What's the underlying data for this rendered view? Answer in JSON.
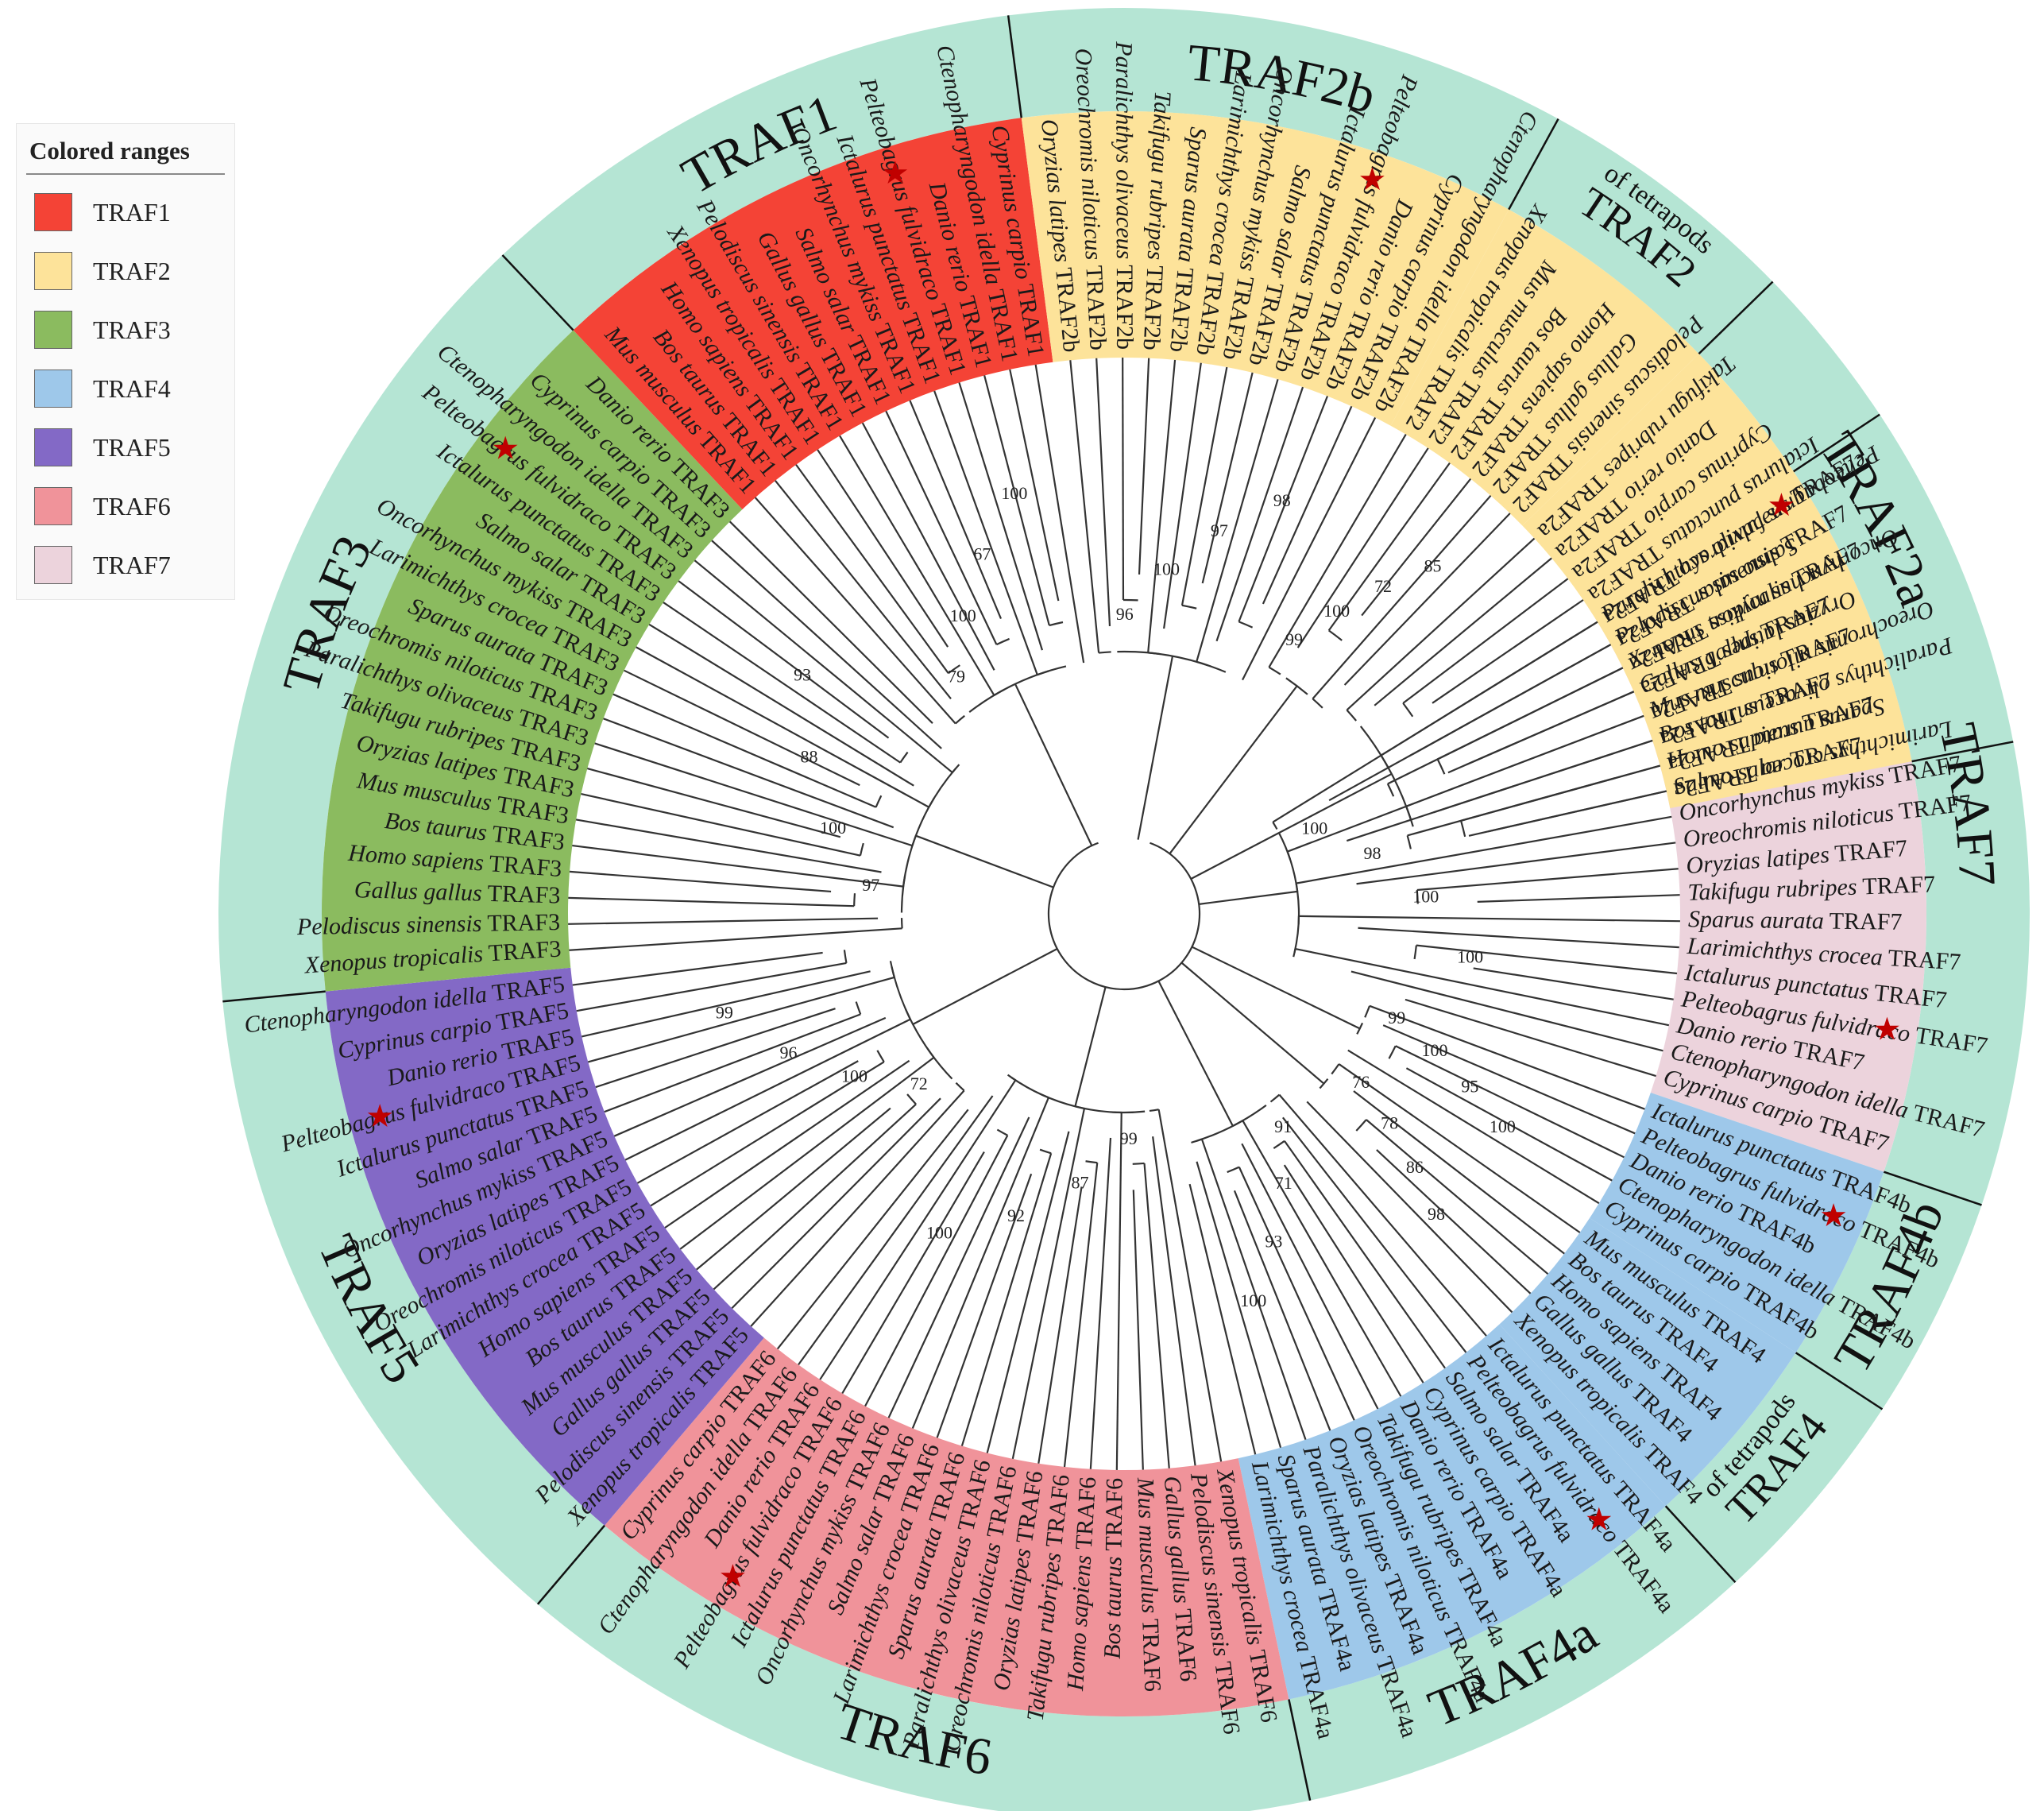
{
  "legend": {
    "title": "Colored ranges",
    "items": [
      {
        "label": "TRAF1",
        "color": "#f44336"
      },
      {
        "label": "TRAF2",
        "color": "#fde39a"
      },
      {
        "label": "TRAF3",
        "color": "#8bbb5f"
      },
      {
        "label": "TRAF4",
        "color": "#9ec8ea"
      },
      {
        "label": "TRAF5",
        "color": "#8369c6"
      },
      {
        "label": "TRAF6",
        "color": "#f0939a"
      },
      {
        "label": "TRAF7",
        "color": "#ecd3dc"
      }
    ]
  },
  "colors": {
    "ring": "#b5e5d4",
    "branch": "#333333",
    "star": "#c00000",
    "divider": "#111111"
  },
  "ring_labels": [
    {
      "id": "traf1",
      "text": "TRAF1"
    },
    {
      "id": "traf2b",
      "text": "TRAF2b"
    },
    {
      "id": "traf2t",
      "text": "TRAF2",
      "sub": "of tetrapods"
    },
    {
      "id": "traf2a",
      "text": "TRAF2a"
    },
    {
      "id": "traf7",
      "text": "TRAF7"
    },
    {
      "id": "traf4b",
      "text": "TRAF4b"
    },
    {
      "id": "traf4t",
      "text": "TRAF4",
      "sub": "of tetrapods"
    },
    {
      "id": "traf4a",
      "text": "TRAF4a"
    },
    {
      "id": "traf6",
      "text": "TRAF6"
    },
    {
      "id": "traf5",
      "text": "TRAF5"
    },
    {
      "id": "traf3",
      "text": "TRAF3"
    }
  ],
  "clades": [
    {
      "id": "traf7",
      "family": "TRAF7",
      "leaves": [
        {
          "species": "Paralichthys olivaceus",
          "gene": "TRAF7"
        },
        {
          "species": "Pelodiscus sinensis",
          "gene": "TRAF7"
        },
        {
          "species": "Xenopus tropicalis",
          "gene": "TRAF7"
        },
        {
          "species": "Gallus gallus",
          "gene": "TRAF7"
        },
        {
          "species": "Mus musculus",
          "gene": "TRAF7"
        },
        {
          "species": "Bos taurus",
          "gene": "TRAF7"
        },
        {
          "species": "Homo sapiens",
          "gene": "TRAF7"
        },
        {
          "species": "Salmo salar",
          "gene": "TRAF7"
        },
        {
          "species": "Oncorhynchus mykiss",
          "gene": "TRAF7"
        },
        {
          "species": "Oreochromis niloticus",
          "gene": "TRAF7"
        },
        {
          "species": "Oryzias latipes",
          "gene": "TRAF7"
        },
        {
          "species": "Takifugu rubripes",
          "gene": "TRAF7"
        },
        {
          "species": "Sparus aurata",
          "gene": "TRAF7"
        },
        {
          "species": "Larimichthys crocea",
          "gene": "TRAF7"
        },
        {
          "species": "Ictalurus punctatus",
          "gene": "TRAF7"
        },
        {
          "species": "Pelteobagrus fulvidraco",
          "gene": "TRAF7",
          "star": true
        },
        {
          "species": "Danio rerio",
          "gene": "TRAF7"
        },
        {
          "species": "Ctenopharyngodon idella",
          "gene": "TRAF7"
        },
        {
          "species": "Cyprinus carpio",
          "gene": "TRAF7"
        }
      ]
    },
    {
      "id": "traf4b",
      "family": "TRAF4",
      "leaves": [
        {
          "species": "Ictalurus punctatus",
          "gene": "TRAF4b"
        },
        {
          "species": "Pelteobagrus fulvidraco",
          "gene": "TRAF4b",
          "star": true
        },
        {
          "species": "Danio rerio",
          "gene": "TRAF4b"
        },
        {
          "species": "Ctenopharyngodon idella",
          "gene": "TRAF4b"
        },
        {
          "species": "Cyprinus carpio",
          "gene": "TRAF4b"
        }
      ]
    },
    {
      "id": "traf4t",
      "family": "TRAF4",
      "leaves": [
        {
          "species": "Mus musculus",
          "gene": "TRAF4"
        },
        {
          "species": "Bos taurus",
          "gene": "TRAF4"
        },
        {
          "species": "Homo sapiens",
          "gene": "TRAF4"
        },
        {
          "species": "Gallus gallus",
          "gene": "TRAF4"
        },
        {
          "species": "Xenopus tropicalis",
          "gene": "TRAF4"
        }
      ]
    },
    {
      "id": "traf4a",
      "family": "TRAF4",
      "leaves": [
        {
          "species": "Ictalurus punctatus",
          "gene": "TRAF4a"
        },
        {
          "species": "Pelteobagrus fulvidraco",
          "gene": "TRAF4a",
          "star": true
        },
        {
          "species": "Salmo salar",
          "gene": "TRAF4a"
        },
        {
          "species": "Cyprinus carpio",
          "gene": "TRAF4a"
        },
        {
          "species": "Danio rerio",
          "gene": "TRAF4a"
        },
        {
          "species": "Takifugu rubripes",
          "gene": "TRAF4a"
        },
        {
          "species": "Oreochromis niloticus",
          "gene": "TRAF4a"
        },
        {
          "species": "Oryzias latipes",
          "gene": "TRAF4a"
        },
        {
          "species": "Paralichthys olivaceus",
          "gene": "TRAF4a"
        },
        {
          "species": "Sparus aurata",
          "gene": "TRAF4a"
        },
        {
          "species": "Larimichthys crocea",
          "gene": "TRAF4a"
        }
      ]
    },
    {
      "id": "traf6",
      "family": "TRAF6",
      "leaves": [
        {
          "species": "Xenopus tropicalis",
          "gene": "TRAF6"
        },
        {
          "species": "Pelodiscus sinensis",
          "gene": "TRAF6"
        },
        {
          "species": "Gallus gallus",
          "gene": "TRAF6"
        },
        {
          "species": "Mus musculus",
          "gene": "TRAF6"
        },
        {
          "species": "Bos taurus",
          "gene": "TRAF6"
        },
        {
          "species": "Homo sapiens",
          "gene": "TRAF6"
        },
        {
          "species": "Takifugu rubripes",
          "gene": "TRAF6"
        },
        {
          "species": "Oryzias latipes",
          "gene": "TRAF6"
        },
        {
          "species": "Oreochromis niloticus",
          "gene": "TRAF6"
        },
        {
          "species": "Paralichthys olivaceus",
          "gene": "TRAF6"
        },
        {
          "species": "Sparus aurata",
          "gene": "TRAF6"
        },
        {
          "species": "Larimichthys crocea",
          "gene": "TRAF6"
        },
        {
          "species": "Salmo salar",
          "gene": "TRAF6"
        },
        {
          "species": "Oncorhynchus mykiss",
          "gene": "TRAF6"
        },
        {
          "species": "Ictalurus punctatus",
          "gene": "TRAF6"
        },
        {
          "species": "Pelteobagrus fulvidraco",
          "gene": "TRAF6",
          "star": true
        },
        {
          "species": "Danio rerio",
          "gene": "TRAF6"
        },
        {
          "species": "Ctenopharyngodon idella",
          "gene": "TRAF6"
        },
        {
          "species": "Cyprinus carpio",
          "gene": "TRAF6"
        }
      ]
    },
    {
      "id": "traf5",
      "family": "TRAF5",
      "leaves": [
        {
          "species": "Xenopus tropicalis",
          "gene": "TRAF5"
        },
        {
          "species": "Pelodiscus sinensis",
          "gene": "TRAF5"
        },
        {
          "species": "Gallus gallus",
          "gene": "TRAF5"
        },
        {
          "species": "Mus musculus",
          "gene": "TRAF5"
        },
        {
          "species": "Bos taurus",
          "gene": "TRAF5"
        },
        {
          "species": "Homo sapiens",
          "gene": "TRAF5"
        },
        {
          "species": "Larimichthys crocea",
          "gene": "TRAF5"
        },
        {
          "species": "Oreochromis niloticus",
          "gene": "TRAF5"
        },
        {
          "species": "Oryzias latipes",
          "gene": "TRAF5"
        },
        {
          "species": "Oncorhynchus mykiss",
          "gene": "TRAF5"
        },
        {
          "species": "Salmo salar",
          "gene": "TRAF5"
        },
        {
          "species": "Ictalurus punctatus",
          "gene": "TRAF5"
        },
        {
          "species": "Pelteobagrus fulvidraco",
          "gene": "TRAF5",
          "star": true
        },
        {
          "species": "Danio rerio",
          "gene": "TRAF5"
        },
        {
          "species": "Cyprinus carpio",
          "gene": "TRAF5"
        },
        {
          "species": "Ctenopharyngodon idella",
          "gene": "TRAF5"
        }
      ]
    },
    {
      "id": "traf3",
      "family": "TRAF3",
      "leaves": [
        {
          "species": "Xenopus tropicalis",
          "gene": "TRAF3"
        },
        {
          "species": "Pelodiscus sinensis",
          "gene": "TRAF3"
        },
        {
          "species": "Gallus gallus",
          "gene": "TRAF3"
        },
        {
          "species": "Homo sapiens",
          "gene": "TRAF3"
        },
        {
          "species": "Bos taurus",
          "gene": "TRAF3"
        },
        {
          "species": "Mus musculus",
          "gene": "TRAF3"
        },
        {
          "species": "Oryzias latipes",
          "gene": "TRAF3"
        },
        {
          "species": "Takifugu rubripes",
          "gene": "TRAF3"
        },
        {
          "species": "Paralichthys olivaceus",
          "gene": "TRAF3"
        },
        {
          "species": "Oreochromis niloticus",
          "gene": "TRAF3"
        },
        {
          "species": "Sparus aurata",
          "gene": "TRAF3"
        },
        {
          "species": "Larimichthys crocea",
          "gene": "TRAF3"
        },
        {
          "species": "Oncorhynchus mykiss",
          "gene": "TRAF3"
        },
        {
          "species": "Salmo salar",
          "gene": "TRAF3"
        },
        {
          "species": "Ictalurus punctatus",
          "gene": "TRAF3"
        },
        {
          "species": "Pelteobagrus fulvidraco",
          "gene": "TRAF3",
          "star": true
        },
        {
          "species": "Ctenopharyngodon idella",
          "gene": "TRAF3"
        },
        {
          "species": "Cyprinus carpio",
          "gene": "TRAF3"
        },
        {
          "species": "Danio rerio",
          "gene": "TRAF3"
        }
      ]
    },
    {
      "id": "traf1",
      "family": "TRAF1",
      "leaves": [
        {
          "species": "Mus musculus",
          "gene": "TRAF1"
        },
        {
          "species": "Bos taurus",
          "gene": "TRAF1"
        },
        {
          "species": "Homo sapiens",
          "gene": "TRAF1"
        },
        {
          "species": "Xenopus tropicalis",
          "gene": "TRAF1"
        },
        {
          "species": "Pelodiscus sinensis",
          "gene": "TRAF1"
        },
        {
          "species": "Gallus gallus",
          "gene": "TRAF1"
        },
        {
          "species": "Salmo salar",
          "gene": "TRAF1"
        },
        {
          "species": "Oncorhynchus mykiss",
          "gene": "TRAF1"
        },
        {
          "species": "Ictalurus punctatus",
          "gene": "TRAF1"
        },
        {
          "species": "Pelteobagrus fulvidraco",
          "gene": "TRAF1",
          "star": true
        },
        {
          "species": "Danio rerio",
          "gene": "TRAF1"
        },
        {
          "species": "Ctenopharyngodon idella",
          "gene": "TRAF1"
        },
        {
          "species": "Cyprinus carpio",
          "gene": "TRAF1"
        }
      ]
    },
    {
      "id": "traf2b",
      "family": "TRAF2",
      "leaves": [
        {
          "species": "Oryzias latipes",
          "gene": "TRAF2b"
        },
        {
          "species": "Oreochromis niloticus",
          "gene": "TRAF2b"
        },
        {
          "species": "Paralichthys olivaceus",
          "gene": "TRAF2b"
        },
        {
          "species": "Takifugu rubripes",
          "gene": "TRAF2b"
        },
        {
          "species": "Sparus aurata",
          "gene": "TRAF2b"
        },
        {
          "species": "Larimichthys crocea",
          "gene": "TRAF2b"
        },
        {
          "species": "Oncorhynchus mykiss",
          "gene": "TRAF2b"
        },
        {
          "species": "Salmo salar",
          "gene": "TRAF2b"
        },
        {
          "species": "Ictalurus punctatus",
          "gene": "TRAF2b"
        },
        {
          "species": "Pelteobagrus fulvidraco",
          "gene": "TRAF2b",
          "star": true
        },
        {
          "species": "Danio rerio",
          "gene": "TRAF2b"
        },
        {
          "species": "Cyprinus carpio",
          "gene": "TRAF2b"
        },
        {
          "species": "Ctenopharyngodon idella",
          "gene": "TRAF2b"
        }
      ]
    },
    {
      "id": "traf2t",
      "family": "TRAF2",
      "leaves": [
        {
          "species": "Xenopus tropicalis",
          "gene": "TRAF2"
        },
        {
          "species": "Mus musculus",
          "gene": "TRAF2"
        },
        {
          "species": "Bos taurus",
          "gene": "TRAF2"
        },
        {
          "species": "Homo sapiens",
          "gene": "TRAF2"
        },
        {
          "species": "Gallus gallus",
          "gene": "TRAF2"
        },
        {
          "species": "Pelodiscus sinensis",
          "gene": "TRAF2"
        }
      ]
    },
    {
      "id": "traf2a",
      "family": "TRAF2",
      "leaves": [
        {
          "species": "Takifugu rubripes",
          "gene": "TRAF2a"
        },
        {
          "species": "Danio rerio",
          "gene": "TRAF2a"
        },
        {
          "species": "Cyprinus carpio",
          "gene": "TRAF2a"
        },
        {
          "species": "Ictalurus punctatus",
          "gene": "TRAF2a"
        },
        {
          "species": "Pelteobagrus fulvidraco",
          "gene": "TRAF2a",
          "star": true
        },
        {
          "species": "Salmo salar",
          "gene": "TRAF2a"
        },
        {
          "species": "Oncorhynchus mykiss",
          "gene": "TRAF2a"
        },
        {
          "species": "Oryzias latipes",
          "gene": "TRAF2a"
        },
        {
          "species": "Oreochromis niloticus",
          "gene": "TRAF2a"
        },
        {
          "species": "Paralichthys olivaceus",
          "gene": "TRAF2a"
        },
        {
          "species": "Sparus aurata",
          "gene": "TRAF2a"
        },
        {
          "species": "Larimichthys crocea",
          "gene": "TRAF2a"
        }
      ]
    }
  ],
  "bootstrap_values": [
    "100",
    "98",
    "100",
    "100",
    "99",
    "100",
    "95",
    "100",
    "76",
    "78",
    "86",
    "98",
    "91",
    "71",
    "93",
    "100",
    "99",
    "87",
    "92",
    "100",
    "72",
    "100",
    "96",
    "99",
    "97",
    "100",
    "88",
    "93",
    "79",
    "100",
    "67",
    "100",
    "96",
    "100",
    "97",
    "98",
    "99",
    "100",
    "72",
    "85"
  ]
}
